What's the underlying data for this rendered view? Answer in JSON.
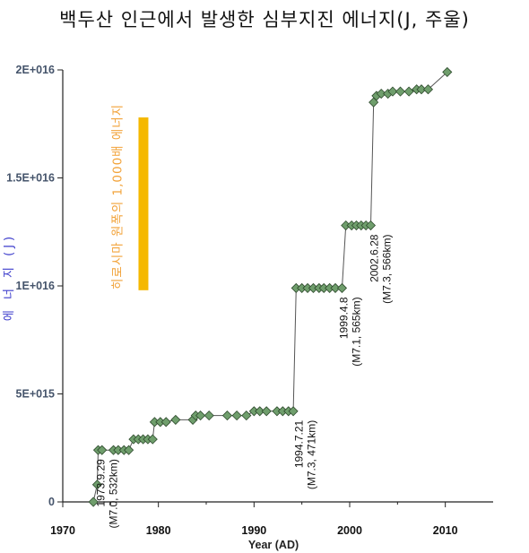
{
  "title": "백두산 인근에서 발생한 심부지진 에너지(J, 주울)",
  "chart_data": {
    "type": "line",
    "title": "백두산 인근에서 발생한 심부지진 에너지(J, 주울)",
    "xlabel": "Year (AD)",
    "ylabel": "에 너 지 (J)",
    "xlim": [
      1970,
      2015
    ],
    "ylim": [
      0,
      2e+16
    ],
    "x_ticks": [
      1970,
      1980,
      1990,
      2000,
      2010
    ],
    "x_tick_labels": [
      "1970",
      "1980",
      "1990",
      "2000",
      "2010"
    ],
    "y_ticks": [
      0,
      5000000000000000.0,
      1e+16,
      1.5e+16,
      2e+16
    ],
    "y_tick_labels": [
      "0",
      "5E+015",
      "1E+016",
      "1.5E+016",
      "2E+016"
    ],
    "grid": false,
    "legend": "none",
    "marker": "diamond",
    "colors": {
      "marker_fill": "#6f9e6c",
      "marker_stroke": "#2e4a2d",
      "line": "#555555",
      "axis": "#222222",
      "scale_bar": "#f5b800",
      "scale_text": "#f2a33a",
      "ylabel": "#3d3dcc",
      "ytick": "#45546b"
    },
    "series": [
      {
        "points": [
          [
            1973.2,
            0.0
          ],
          [
            1973.6,
            800000000000000.0
          ],
          [
            1973.7,
            2400000000000000.0
          ],
          [
            1974.1,
            2400000000000000.0
          ],
          [
            1975.3,
            2400000000000000.0
          ],
          [
            1975.8,
            2400000000000000.0
          ],
          [
            1976.4,
            2400000000000000.0
          ],
          [
            1976.9,
            2400000000000000.0
          ],
          [
            1977.4,
            2900000000000000.0
          ],
          [
            1977.9,
            2900000000000000.0
          ],
          [
            1978.4,
            2900000000000000.0
          ],
          [
            1978.9,
            2900000000000000.0
          ],
          [
            1979.4,
            2900000000000000.0
          ],
          [
            1979.6,
            3700000000000000.0
          ],
          [
            1980.2,
            3700000000000000.0
          ],
          [
            1980.8,
            3700000000000000.0
          ],
          [
            1981.8,
            3800000000000000.0
          ],
          [
            1983.6,
            3800000000000000.0
          ],
          [
            1983.9,
            4000000000000000.0
          ],
          [
            1984.4,
            4000000000000000.0
          ],
          [
            1985.3,
            4000000000000000.0
          ],
          [
            1987.2,
            4000000000000000.0
          ],
          [
            1988.2,
            4000000000000000.0
          ],
          [
            1989.2,
            4000000000000000.0
          ],
          [
            1990.0,
            4200000000000000.0
          ],
          [
            1990.6,
            4200000000000000.0
          ],
          [
            1991.3,
            4200000000000000.0
          ],
          [
            1992.4,
            4200000000000000.0
          ],
          [
            1993.0,
            4200000000000000.0
          ],
          [
            1993.6,
            4200000000000000.0
          ],
          [
            1994.1,
            4200000000000000.0
          ],
          [
            1994.4,
            9900000000000000.0
          ],
          [
            1995.0,
            9900000000000000.0
          ],
          [
            1995.6,
            9900000000000000.0
          ],
          [
            1996.2,
            9900000000000000.0
          ],
          [
            1996.8,
            9900000000000000.0
          ],
          [
            1997.3,
            9900000000000000.0
          ],
          [
            1997.9,
            9900000000000000.0
          ],
          [
            1998.5,
            9900000000000000.0
          ],
          [
            1999.2,
            9900000000000000.0
          ],
          [
            1999.6,
            1.28e+16
          ],
          [
            2000.2,
            1.28e+16
          ],
          [
            2000.7,
            1.28e+16
          ],
          [
            2001.2,
            1.28e+16
          ],
          [
            2001.7,
            1.28e+16
          ],
          [
            2002.2,
            1.28e+16
          ],
          [
            2002.5,
            1.85e+16
          ],
          [
            2002.8,
            1.88e+16
          ],
          [
            2003.3,
            1.89e+16
          ],
          [
            2004.0,
            1.89e+16
          ],
          [
            2004.5,
            1.9e+16
          ],
          [
            2005.3,
            1.9e+16
          ],
          [
            2006.2,
            1.9e+16
          ],
          [
            2007.0,
            1.91e+16
          ],
          [
            2007.5,
            1.91e+16
          ],
          [
            2008.2,
            1.91e+16
          ],
          [
            2010.2,
            1.99e+16
          ]
        ]
      }
    ],
    "annotations": [
      {
        "lines": [
          "1973.9.29",
          "(M7.0, 532km)"
        ],
        "x": 1973.9,
        "y": 2400000000000000.0
      },
      {
        "lines": [
          "1994.7.21",
          "(M7.3, 471km)"
        ],
        "x": 1994.6,
        "y": 4200000000000000.0
      },
      {
        "lines": [
          "1999.4.8",
          "(M7.1, 565km)"
        ],
        "x": 1999.3,
        "y": 9900000000000000.0
      },
      {
        "lines": [
          "2002.6.28",
          "(M7.3, 566km)"
        ],
        "x": 2002.5,
        "y": 1.28e+16
      }
    ],
    "scale_reference": {
      "label": "히로시마 원폭의 1,000배 에너지",
      "y_from": 9800000000000000.0,
      "y_to": 1.78e+16,
      "x": 1976.7
    }
  }
}
